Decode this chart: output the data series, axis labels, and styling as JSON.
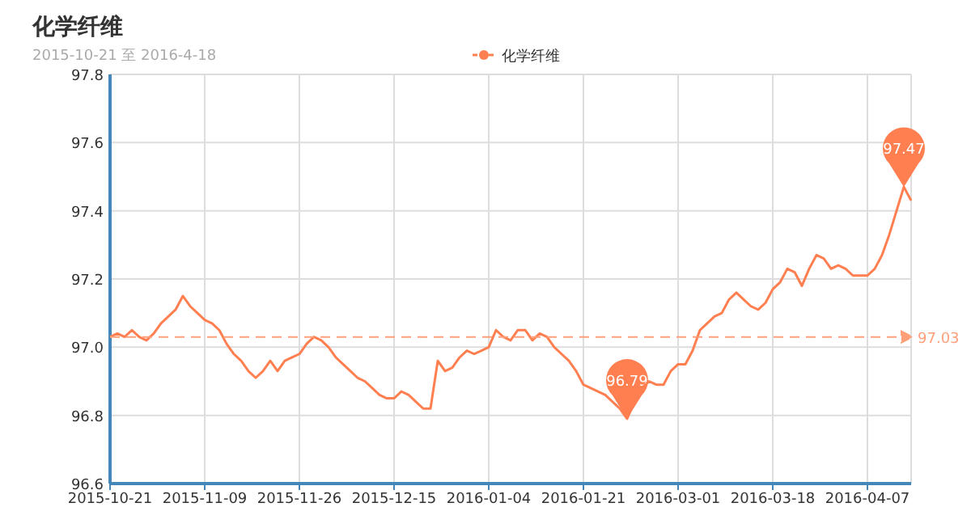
{
  "chart_data": {
    "type": "line",
    "title": "化学纤维",
    "subtitle": "2015-10-21 至 2016-4-18",
    "categories": [
      "2015-10-21",
      null,
      null,
      null,
      null,
      null,
      null,
      null,
      null,
      null,
      null,
      null,
      null,
      "2015-11-09",
      null,
      null,
      null,
      null,
      null,
      null,
      null,
      null,
      null,
      null,
      null,
      null,
      "2015-11-26",
      null,
      null,
      null,
      null,
      null,
      null,
      null,
      null,
      null,
      null,
      null,
      null,
      "2015-12-15",
      null,
      null,
      null,
      null,
      null,
      null,
      null,
      null,
      null,
      null,
      null,
      null,
      "2016-01-04",
      null,
      null,
      null,
      null,
      null,
      null,
      null,
      null,
      null,
      null,
      null,
      null,
      "2016-01-21",
      null,
      null,
      null,
      null,
      null,
      null,
      null,
      null,
      null,
      null,
      null,
      null,
      "2016-03-01",
      null,
      null,
      null,
      null,
      null,
      null,
      null,
      null,
      null,
      null,
      null,
      null,
      "2016-03-18",
      null,
      null,
      null,
      null,
      null,
      null,
      null,
      null,
      null,
      null,
      null,
      null,
      "2016-04-07",
      null,
      null,
      null,
      null,
      null,
      null
    ],
    "series": [
      {
        "name": "化学纤维",
        "color": "#ff7f50",
        "values": [
          97.03,
          97.04,
          97.03,
          97.05,
          97.03,
          97.02,
          97.04,
          97.07,
          97.09,
          97.11,
          97.15,
          97.12,
          97.1,
          97.08,
          97.07,
          97.05,
          97.01,
          96.98,
          96.96,
          96.93,
          96.91,
          96.93,
          96.96,
          96.93,
          96.96,
          96.97,
          96.98,
          97.01,
          97.03,
          97.02,
          97.0,
          96.97,
          96.95,
          96.93,
          96.91,
          96.9,
          96.88,
          96.86,
          96.85,
          96.85,
          96.87,
          96.86,
          96.84,
          96.82,
          96.82,
          96.96,
          96.93,
          96.94,
          96.97,
          96.99,
          96.98,
          96.99,
          97.0,
          97.05,
          97.03,
          97.02,
          97.05,
          97.05,
          97.02,
          97.04,
          97.03,
          97.0,
          96.98,
          96.96,
          96.93,
          96.89,
          96.88,
          96.87,
          96.86,
          96.84,
          96.82,
          96.79,
          96.84,
          96.88,
          96.9,
          96.89,
          96.89,
          96.93,
          96.95,
          96.95,
          96.99,
          97.05,
          97.07,
          97.09,
          97.1,
          97.14,
          97.16,
          97.14,
          97.12,
          97.11,
          97.13,
          97.17,
          97.19,
          97.23,
          97.22,
          97.18,
          97.23,
          97.27,
          97.26,
          97.23,
          97.24,
          97.23,
          97.21,
          97.21,
          97.21,
          97.23,
          97.27,
          97.33,
          97.4,
          97.47,
          97.43
        ]
      }
    ],
    "ylim": [
      96.6,
      97.8
    ],
    "yticks": [
      96.6,
      96.8,
      {
        "value": 97,
        "label": "97.0"
      },
      97.2,
      97.4,
      97.6,
      97.8
    ],
    "grid": true,
    "legend": "top",
    "ref_lines": [
      {
        "axis": "y",
        "value": 97.03,
        "label": "97.03",
        "color": "#ffa07a",
        "line_style": "dashed"
      }
    ],
    "annotations": [
      {
        "text": "97.47",
        "y": 97.47
      },
      {
        "text": "96.79",
        "y": 96.79
      }
    ]
  }
}
